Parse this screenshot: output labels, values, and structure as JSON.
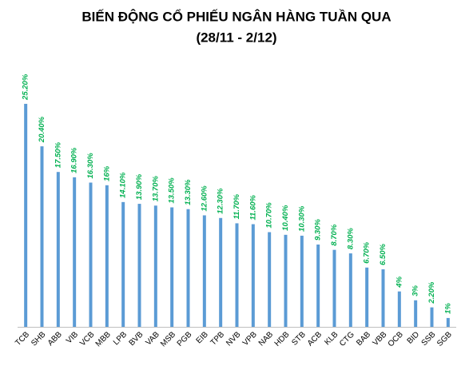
{
  "chart_data": {
    "type": "bar",
    "title": "BIẾN ĐỘNG CỔ PHIẾU NGÂN HÀNG TUẦN QUA",
    "subtitle": "(28/11 - 2/12)",
    "categories": [
      "TCB",
      "SHB",
      "ABB",
      "VIB",
      "VCB",
      "MBB",
      "LPB",
      "BVB",
      "VAB",
      "MSB",
      "PGB",
      "EIB",
      "TPB",
      "NVB",
      "VPB",
      "NAB",
      "HDB",
      "STB",
      "ACB",
      "KLB",
      "CTG",
      "BAB",
      "VBB",
      "OCB",
      "BID",
      "SSB",
      "SGB"
    ],
    "values": [
      25.2,
      20.4,
      17.5,
      16.9,
      16.3,
      16,
      14.1,
      13.9,
      13.7,
      13.5,
      13.3,
      12.6,
      12.3,
      11.7,
      11.6,
      10.7,
      10.4,
      10.3,
      9.3,
      8.7,
      8.3,
      6.7,
      6.5,
      4,
      3,
      2.2,
      1
    ],
    "value_labels": [
      "25.20%",
      "20.40%",
      "17.50%",
      "16.90%",
      "16.30%",
      "16%",
      "14.10%",
      "13.90%",
      "13.70%",
      "13.50%",
      "13.30%",
      "12.60%",
      "12.30%",
      "11.70%",
      "11.60%",
      "10.70%",
      "10.40%",
      "10.30%",
      "9.30%",
      "8.70%",
      "8.30%",
      "6.70%",
      "6.50%",
      "4%",
      "3%",
      "2.20%",
      "1%"
    ],
    "color": "#5b9bd5",
    "label_color": "#00b050",
    "ylim": [
      0,
      27
    ]
  }
}
